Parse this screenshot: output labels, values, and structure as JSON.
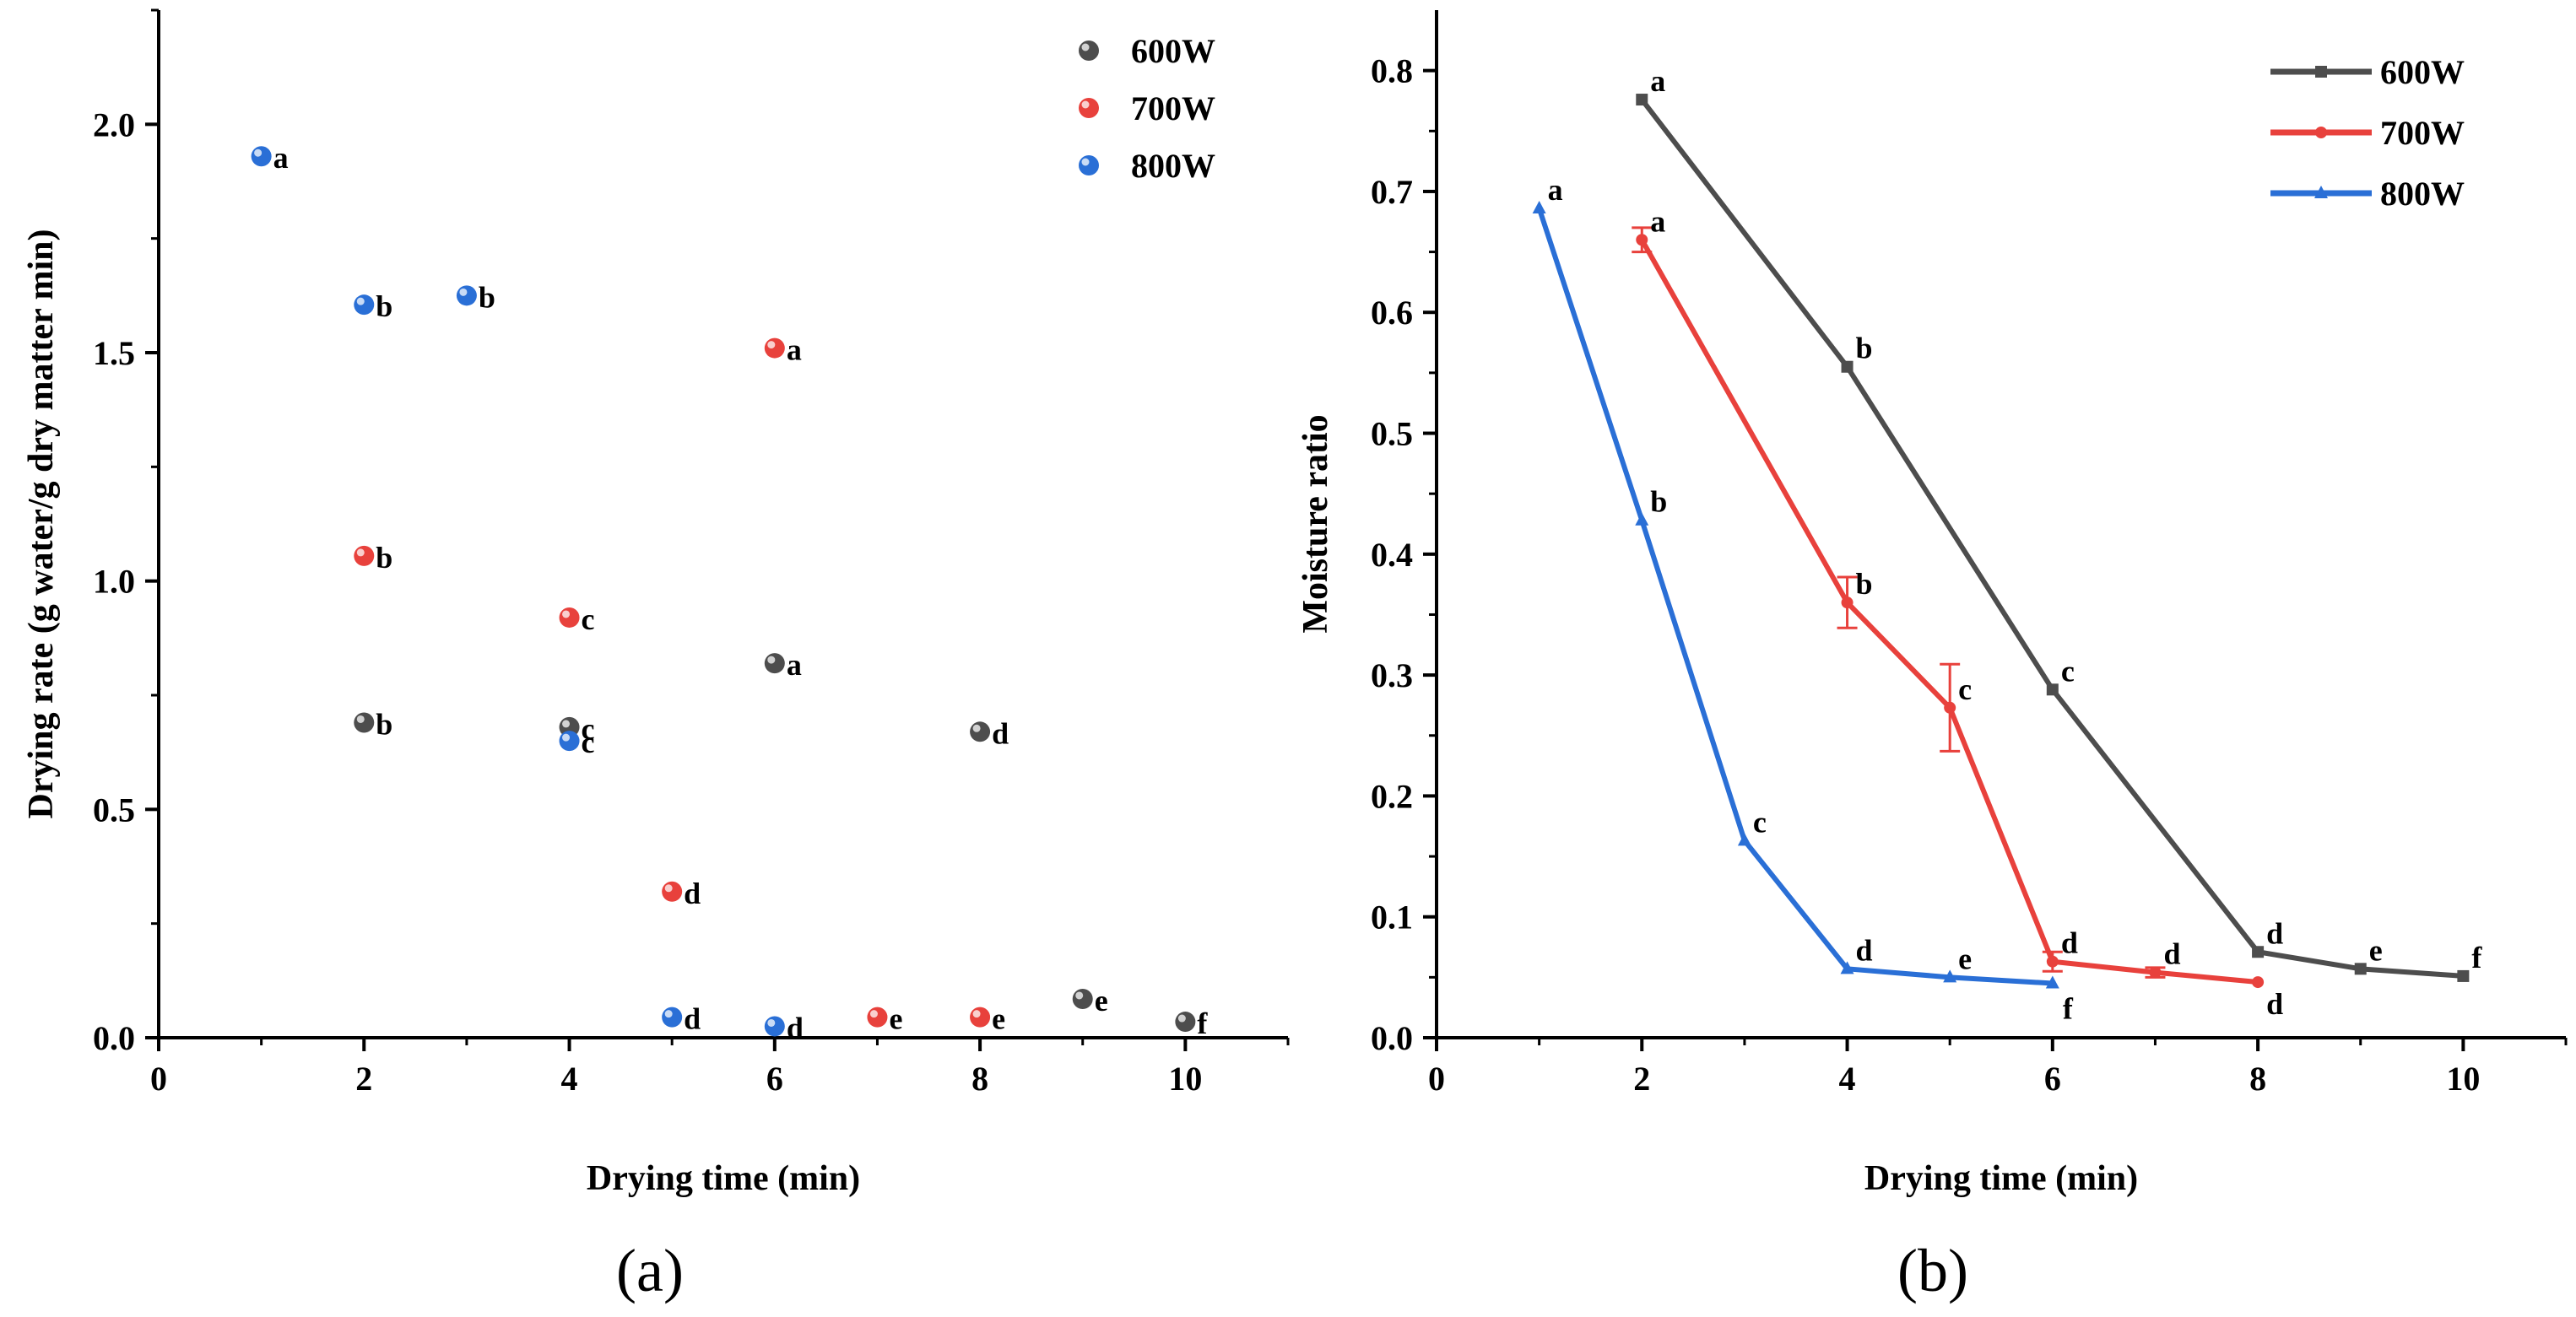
{
  "chart_data": [
    {
      "type": "scatter",
      "panel_label": "(a)",
      "title": "",
      "xlabel": "Drying time (min)",
      "ylabel": "Drying rate (g water/g dry matter min)",
      "xlim": [
        0,
        11
      ],
      "ylim": [
        0,
        2.25
      ],
      "xticks": [
        "0",
        "2",
        "4",
        "6",
        "8",
        "10"
      ],
      "xtick_values": [
        0,
        2,
        4,
        6,
        8,
        10
      ],
      "yticks": [
        "0.0",
        "0.5",
        "1.0",
        "1.5",
        "2.0"
      ],
      "ytick_values": [
        0,
        0.5,
        1.0,
        1.5,
        2.0
      ],
      "grid": false,
      "legend_position": "top-right",
      "series": [
        {
          "name": "600W",
          "color": "#4d4d4d",
          "points": [
            {
              "x": 2,
              "y": 0.69,
              "label": "b"
            },
            {
              "x": 4,
              "y": 0.68,
              "label": "c"
            },
            {
              "x": 6,
              "y": 0.82,
              "label": "a"
            },
            {
              "x": 8,
              "y": 0.67,
              "label": "d"
            },
            {
              "x": 9,
              "y": 0.085,
              "label": "e"
            },
            {
              "x": 10,
              "y": 0.035,
              "label": "f"
            }
          ]
        },
        {
          "name": "700W",
          "color": "#e8413c",
          "points": [
            {
              "x": 2,
              "y": 1.055,
              "label": "b"
            },
            {
              "x": 4,
              "y": 0.92,
              "label": "c"
            },
            {
              "x": 5,
              "y": 0.32,
              "label": "d"
            },
            {
              "x": 6,
              "y": 1.51,
              "label": "a"
            },
            {
              "x": 7,
              "y": 0.045,
              "label": "e"
            },
            {
              "x": 8,
              "y": 0.045,
              "label": "e"
            }
          ]
        },
        {
          "name": "800W",
          "color": "#2a6fd6",
          "points": [
            {
              "x": 1,
              "y": 1.93,
              "label": "a"
            },
            {
              "x": 2,
              "y": 1.605,
              "label": "b"
            },
            {
              "x": 3,
              "y": 1.625,
              "label": "b"
            },
            {
              "x": 4,
              "y": 0.65,
              "label": "c"
            },
            {
              "x": 5,
              "y": 0.045,
              "label": "d"
            },
            {
              "x": 6,
              "y": 0.025,
              "label": "d"
            }
          ]
        }
      ]
    },
    {
      "type": "line",
      "panel_label": "(b)",
      "title": "",
      "xlabel": "Drying time (min)",
      "ylabel": "Moisture ratio",
      "xlim": [
        0,
        11
      ],
      "ylim": [
        0,
        0.85
      ],
      "xticks": [
        "0",
        "2",
        "4",
        "6",
        "8",
        "10"
      ],
      "xtick_values": [
        0,
        2,
        4,
        6,
        8,
        10
      ],
      "yticks": [
        "0.0",
        "0.1",
        "0.2",
        "0.3",
        "0.4",
        "0.5",
        "0.6",
        "0.7",
        "0.8"
      ],
      "ytick_values": [
        0,
        0.1,
        0.2,
        0.3,
        0.4,
        0.5,
        0.6,
        0.7,
        0.8
      ],
      "grid": false,
      "legend_position": "top-right",
      "series": [
        {
          "name": "600W",
          "color": "#4d4d4d",
          "marker": "square",
          "points": [
            {
              "x": 2,
              "y": 0.776,
              "label": "a",
              "err": 0
            },
            {
              "x": 4,
              "y": 0.555,
              "label": "b",
              "err": 0
            },
            {
              "x": 6,
              "y": 0.288,
              "label": "c",
              "err": 0
            },
            {
              "x": 8,
              "y": 0.071,
              "label": "d",
              "err": 0
            },
            {
              "x": 9,
              "y": 0.057,
              "label": "e",
              "err": 0
            },
            {
              "x": 10,
              "y": 0.051,
              "label": "f",
              "err": 0
            }
          ]
        },
        {
          "name": "700W",
          "color": "#e8413c",
          "marker": "circle",
          "points": [
            {
              "x": 2,
              "y": 0.66,
              "label": "a",
              "err": 0.01
            },
            {
              "x": 4,
              "y": 0.36,
              "label": "b",
              "err": 0.021
            },
            {
              "x": 5,
              "y": 0.273,
              "label": "c",
              "err": 0.036
            },
            {
              "x": 6,
              "y": 0.063,
              "label": "d",
              "err": 0.008
            },
            {
              "x": 7,
              "y": 0.054,
              "label": "d",
              "err": 0.004
            },
            {
              "x": 8,
              "y": 0.046,
              "label": "d",
              "err": 0
            }
          ]
        },
        {
          "name": "800W",
          "color": "#2a6fd6",
          "marker": "triangle",
          "points": [
            {
              "x": 1,
              "y": 0.686,
              "label": "a",
              "err": 0
            },
            {
              "x": 2,
              "y": 0.428,
              "label": "b",
              "err": 0
            },
            {
              "x": 3,
              "y": 0.163,
              "label": "c",
              "err": 0
            },
            {
              "x": 4,
              "y": 0.057,
              "label": "d",
              "err": 0
            },
            {
              "x": 5,
              "y": 0.05,
              "label": "e",
              "err": 0
            },
            {
              "x": 6,
              "y": 0.045,
              "label": "f",
              "err": 0
            }
          ]
        }
      ]
    }
  ]
}
